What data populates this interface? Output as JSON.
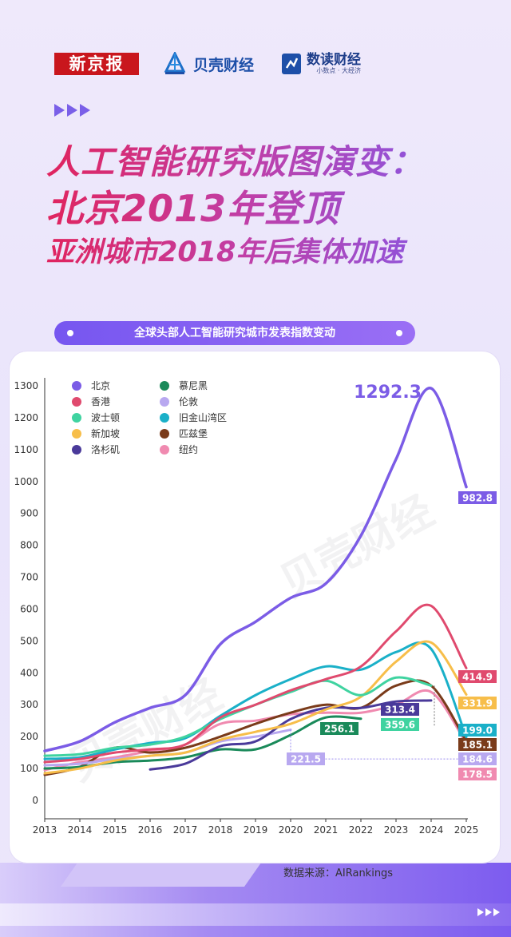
{
  "logos": {
    "xinjingbao": "新京报",
    "beike": "贝壳财经",
    "shudu": "数读财经",
    "shudu_sub": "小数点 · 大经济"
  },
  "headline": {
    "line1": "人工智能研究版图演变：",
    "line2": "北京2013年登顶",
    "line3": "亚洲城市2018年后集体加速"
  },
  "banner": "全球头部人工智能研究城市发表指数变动",
  "watermark": "贝壳财经",
  "source": "数据来源：AIRankings",
  "chart_data": {
    "type": "line",
    "x": [
      2013,
      2014,
      2015,
      2016,
      2017,
      2018,
      2019,
      2020,
      2021,
      2022,
      2023,
      2024,
      2025
    ],
    "ylim": [
      0,
      1300
    ],
    "yticks": [
      0,
      100,
      200,
      300,
      400,
      500,
      600,
      700,
      800,
      900,
      1000,
      1100,
      1200,
      1300
    ],
    "legend_position": "top-left",
    "series": [
      {
        "name": "北京",
        "color": "#7b5ce6",
        "values": [
          155,
          185,
          245,
          290,
          330,
          490,
          560,
          635,
          680,
          830,
          1070,
          1292.3,
          982.8
        ]
      },
      {
        "name": "香港",
        "color": "#e04a6e",
        "values": [
          120,
          130,
          150,
          160,
          175,
          260,
          300,
          345,
          380,
          420,
          530,
          610,
          414.9
        ]
      },
      {
        "name": "波士顿",
        "color": "#3fd3a0",
        "values": [
          140,
          145,
          165,
          175,
          200,
          255,
          300,
          340,
          375,
          330,
          385,
          360,
          null
        ]
      },
      {
        "name": "新加坡",
        "color": "#f7be4a",
        "values": [
          85,
          100,
          125,
          140,
          150,
          190,
          215,
          240,
          285,
          325,
          435,
          495,
          331.9
        ]
      },
      {
        "name": "洛杉矶",
        "color": "#4a3a9a",
        "values": [
          null,
          null,
          null,
          97,
          115,
          170,
          185,
          255,
          290,
          290,
          310,
          313.4,
          null
        ]
      },
      {
        "name": "慕尼黑",
        "color": "#1a8a5a",
        "values": [
          100,
          105,
          120,
          125,
          135,
          160,
          160,
          205,
          260,
          256.1,
          null,
          null,
          null
        ]
      },
      {
        "name": "伦敦",
        "color": "#b8a8f0",
        "values": [
          110,
          115,
          130,
          140,
          150,
          185,
          200,
          221.5,
          null,
          null,
          null,
          null,
          184.6
        ]
      },
      {
        "name": "旧金山湾区",
        "color": "#1ab0c8",
        "values": [
          130,
          135,
          160,
          180,
          195,
          265,
          330,
          380,
          420,
          410,
          465,
          475,
          199.0
        ]
      },
      {
        "name": "匹兹堡",
        "color": "#7a3b1a",
        "values": [
          80,
          105,
          165,
          150,
          165,
          200,
          240,
          275,
          300,
          290,
          360,
          360,
          185.1
        ]
      },
      {
        "name": "纽约",
        "color": "#f08ab0",
        "values": [
          95,
          120,
          135,
          155,
          175,
          240,
          250,
          270,
          275,
          275,
          300,
          340,
          178.5
        ]
      }
    ],
    "labels": [
      {
        "text": "1292.3",
        "series": "北京",
        "x": 2024,
        "y": 1292.3,
        "style": "big"
      },
      {
        "text": "982.8",
        "series": "北京",
        "x": 2025,
        "y": 982.8
      },
      {
        "text": "414.9",
        "series": "香港",
        "x": 2025,
        "y": 414.9
      },
      {
        "text": "331.9",
        "series": "新加坡",
        "x": 2025,
        "y": 331.9
      },
      {
        "text": "199.0",
        "series": "旧金山湾区",
        "x": 2025,
        "y": 199.0
      },
      {
        "text": "185.1",
        "series": "匹兹堡",
        "x": 2025,
        "y": 185.1
      },
      {
        "text": "184.6",
        "series": "伦敦",
        "x": 2025,
        "y": 184.6
      },
      {
        "text": "178.5",
        "series": "纽约",
        "x": 2025,
        "y": 178.5
      },
      {
        "text": "313.4",
        "series": "洛杉矶",
        "x": 2024,
        "y": 313.4
      },
      {
        "text": "359.6",
        "series": "波士顿",
        "x": 2024,
        "y": 359.6
      },
      {
        "text": "256.1",
        "series": "慕尼黑",
        "x": 2022,
        "y": 256.1
      },
      {
        "text": "221.5",
        "series": "伦敦",
        "x": 2020,
        "y": 221.5
      }
    ]
  }
}
